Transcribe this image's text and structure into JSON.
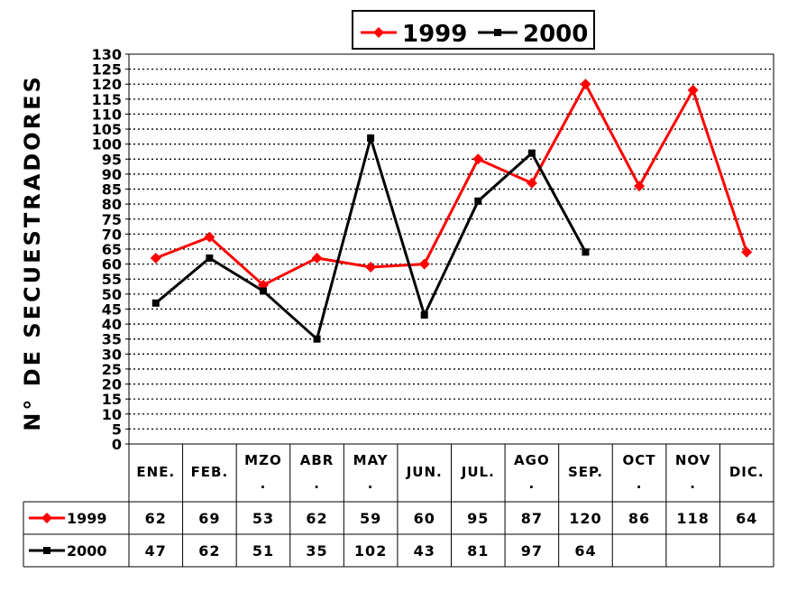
{
  "chart_data": {
    "type": "line",
    "ylabel": "N° DE SECUESTRADORES",
    "ylim": [
      0,
      130
    ],
    "y_ticks": [
      0,
      5,
      10,
      15,
      20,
      25,
      30,
      35,
      40,
      45,
      50,
      55,
      60,
      65,
      70,
      75,
      80,
      85,
      90,
      95,
      100,
      105,
      110,
      115,
      120,
      125,
      130
    ],
    "grid": true,
    "legend_position": "top-right",
    "categories": [
      {
        "lines": [
          "ENE."
        ]
      },
      {
        "lines": [
          "FEB."
        ]
      },
      {
        "lines": [
          "MZO",
          "."
        ]
      },
      {
        "lines": [
          "ABR",
          "."
        ]
      },
      {
        "lines": [
          "MAY",
          "."
        ]
      },
      {
        "lines": [
          "JUN."
        ]
      },
      {
        "lines": [
          "JUL."
        ]
      },
      {
        "lines": [
          "AGO",
          "."
        ]
      },
      {
        "lines": [
          "SEP."
        ]
      },
      {
        "lines": [
          "OCT",
          "."
        ]
      },
      {
        "lines": [
          "NOV",
          "."
        ]
      },
      {
        "lines": [
          "DIC."
        ]
      }
    ],
    "series": [
      {
        "name": "1999",
        "color": "#ff0000",
        "marker": "diamond",
        "values": [
          62,
          69,
          53,
          62,
          59,
          60,
          95,
          87,
          120,
          86,
          118,
          64
        ]
      },
      {
        "name": "2000",
        "color": "#000000",
        "marker": "square",
        "values": [
          47,
          62,
          51,
          35,
          102,
          43,
          81,
          97,
          64,
          null,
          null,
          null
        ]
      }
    ]
  }
}
